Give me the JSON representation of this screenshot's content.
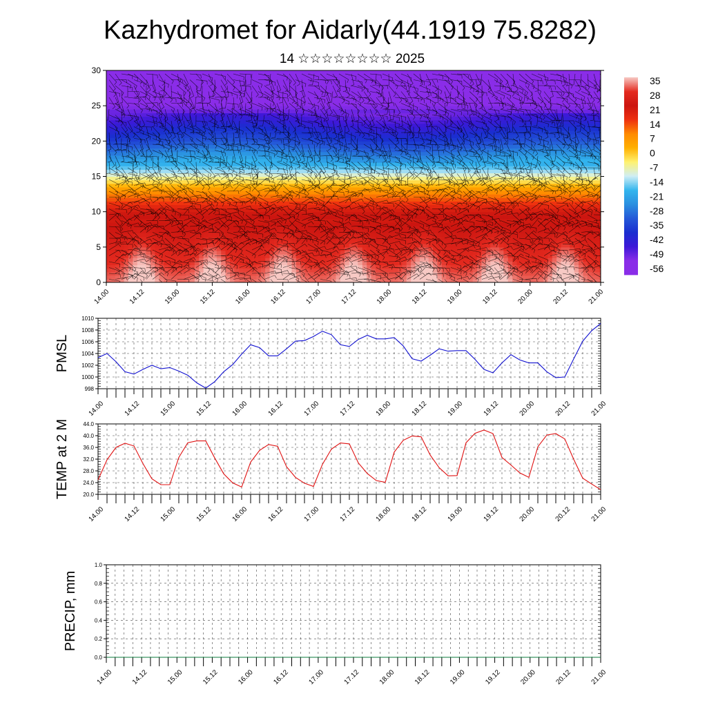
{
  "header": {
    "title": "Kazhydromet for Aidarly(44.1919 75.8282)",
    "subtitle": "14 ☆☆☆☆☆☆☆☆ 2025"
  },
  "chart_data": [
    {
      "type": "heatmap",
      "name": "temperature-cross-section",
      "title": "",
      "xlabel": "",
      "ylabel": "",
      "xlim": [
        "14.00",
        "21.00"
      ],
      "ylim": [
        0,
        30
      ],
      "y_ticks": [
        0,
        5,
        10,
        15,
        20,
        25,
        30
      ],
      "x_tick_labels": [
        "14.00",
        "14.12",
        "15.00",
        "15.12",
        "16.00",
        "16.12",
        "17.00",
        "17.12",
        "18.00",
        "18.12",
        "19.00",
        "19.12",
        "20.00",
        "20.12",
        "21.00"
      ],
      "overlay": "wind barbs",
      "colorbar": {
        "labels": [
          "35",
          "28",
          "21",
          "14",
          "7",
          "0",
          "-7",
          "-14",
          "-21",
          "-28",
          "-35",
          "-42",
          "-49",
          "-56"
        ],
        "colors": [
          "#f7c9c4",
          "#e42a1f",
          "#cc1510",
          "#ee3010",
          "#ff8a00",
          "#ffb000",
          "#fff270",
          "#cfeef5",
          "#33b5ee",
          "#2a8fe0",
          "#2458d8",
          "#1a2ed0",
          "#3d18d8",
          "#8a2de8"
        ]
      },
      "warm_peaks_x": [
        14.5,
        15.5,
        16.5,
        17.5,
        18.5,
        19.5,
        20.5
      ],
      "bands": [
        {
          "altitude": 0,
          "value": 33
        },
        {
          "altitude": 5,
          "value": 27
        },
        {
          "altitude": 10,
          "value": 20
        },
        {
          "altitude": 13,
          "value": 5
        },
        {
          "altitude": 16,
          "value": -18
        },
        {
          "altitude": 20,
          "value": -38
        },
        {
          "altitude": 25,
          "value": -56
        },
        {
          "altitude": 30,
          "value": -56
        }
      ]
    },
    {
      "type": "line",
      "name": "pmsl",
      "ylabel": "PMSL",
      "ylim": [
        998,
        1010
      ],
      "y_ticks": [
        998,
        1000,
        1002,
        1004,
        1006,
        1008,
        1010
      ],
      "x_tick_labels": [
        "14.00",
        "14.12",
        "15.00",
        "15.12",
        "16.00",
        "16.12",
        "17.00",
        "17.12",
        "18.00",
        "18.12",
        "19.00",
        "19.12",
        "20.00",
        "20.12",
        "21.00"
      ],
      "x_start": 14.0,
      "x_step": 0.125,
      "series": [
        {
          "color": "#1010d0",
          "values": [
            1003.3,
            1004.0,
            1002.6,
            1000.9,
            1000.5,
            1001.3,
            1002.0,
            1001.4,
            1001.6,
            1001.0,
            1000.3,
            999.0,
            998.1,
            999.2,
            1000.9,
            1002.1,
            1003.9,
            1005.5,
            1005.0,
            1003.6,
            1003.6,
            1004.8,
            1006.1,
            1006.2,
            1006.9,
            1007.8,
            1007.2,
            1005.5,
            1005.2,
            1006.4,
            1007.1,
            1006.5,
            1006.5,
            1006.7,
            1005.3,
            1003.1,
            1002.7,
            1003.7,
            1004.8,
            1004.4,
            1004.5,
            1004.5,
            1003.0,
            1001.3,
            1000.7,
            1002.4,
            1003.8,
            1002.9,
            1002.4,
            1002.4,
            1000.9,
            999.9,
            1000.0,
            1003.1,
            1006.1,
            1007.9,
            1009.1
          ]
        }
      ]
    },
    {
      "type": "line",
      "name": "temp-2m",
      "ylabel": "TEMP at 2 M",
      "ylim": [
        20.0,
        44.0
      ],
      "y_ticks": [
        "20.0",
        "24.0",
        "28.0",
        "32.0",
        "36.0",
        "40.0",
        "44.0"
      ],
      "x_tick_labels": [
        "14.00",
        "14.12",
        "15.00",
        "15.12",
        "16.00",
        "16.12",
        "17.00",
        "17.12",
        "18.00",
        "18.12",
        "19.00",
        "19.12",
        "20.00",
        "20.12",
        "21.00"
      ],
      "x_start": 14.0,
      "x_step": 0.125,
      "series": [
        {
          "color": "#e01010",
          "values": [
            24.9,
            31.8,
            36.0,
            37.4,
            36.5,
            30.5,
            25.3,
            23.3,
            23.3,
            32.6,
            37.6,
            38.2,
            38.2,
            32.4,
            27.0,
            23.9,
            22.5,
            31.0,
            35.0,
            37.0,
            36.4,
            29.4,
            25.8,
            23.8,
            22.7,
            30.2,
            35.4,
            37.5,
            37.2,
            30.7,
            27.1,
            24.7,
            24.1,
            34.4,
            38.4,
            39.9,
            39.6,
            33.4,
            29.1,
            26.3,
            26.4,
            37.6,
            40.8,
            41.9,
            40.7,
            32.6,
            30.0,
            27.3,
            25.8,
            36.2,
            40.2,
            40.7,
            38.9,
            31.9,
            25.5,
            23.5,
            21.6
          ]
        }
      ]
    },
    {
      "type": "line",
      "name": "precip",
      "ylabel": "PRECIP, mm",
      "ylim": [
        0.0,
        1.0
      ],
      "y_ticks": [
        "0.0",
        "0.2",
        "0.4",
        "0.6",
        "0.8",
        "1.0"
      ],
      "x_tick_labels": [
        "14.00",
        "14.12",
        "15.00",
        "15.12",
        "16.00",
        "16.12",
        "17.00",
        "17.12",
        "18.00",
        "18.12",
        "19.00",
        "19.12",
        "20.00",
        "20.12",
        "21.00"
      ],
      "x_start": 14.0,
      "x_step": 0.125,
      "series": [
        {
          "color": "#0a7a3a",
          "values": [
            0,
            0,
            0,
            0,
            0,
            0,
            0,
            0,
            0,
            0,
            0,
            0,
            0,
            0,
            0,
            0,
            0,
            0,
            0,
            0,
            0,
            0,
            0,
            0,
            0,
            0,
            0,
            0,
            0,
            0,
            0,
            0,
            0,
            0,
            0,
            0,
            0,
            0,
            0,
            0,
            0,
            0,
            0,
            0,
            0,
            0,
            0,
            0,
            0,
            0,
            0,
            0,
            0,
            0,
            0,
            0,
            0
          ]
        }
      ]
    }
  ]
}
